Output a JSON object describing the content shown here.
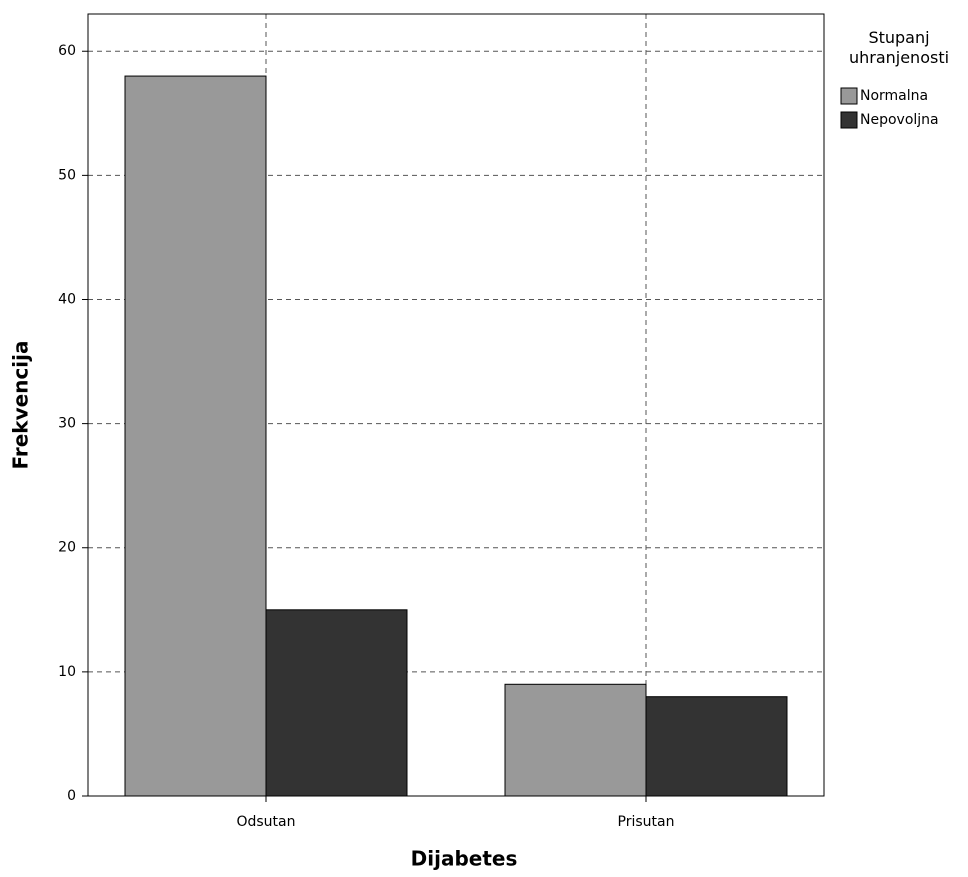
{
  "chart_data": {
    "type": "bar",
    "x_label": "Dijabetes",
    "y_label": "Frekvencija",
    "categories": [
      "Odsutan",
      "Prisutan"
    ],
    "legend_title": "Stupanj uhranjenosti",
    "series": [
      {
        "name": "Normalna",
        "color": "#999999",
        "values": [
          58,
          9
        ]
      },
      {
        "name": "Nepovoljna",
        "color": "#333333",
        "values": [
          15,
          8
        ]
      }
    ],
    "ylim": [
      0,
      63
    ],
    "yticks": [
      0,
      10,
      20,
      30,
      40,
      50,
      60
    ],
    "grid": true,
    "legend": "right"
  }
}
